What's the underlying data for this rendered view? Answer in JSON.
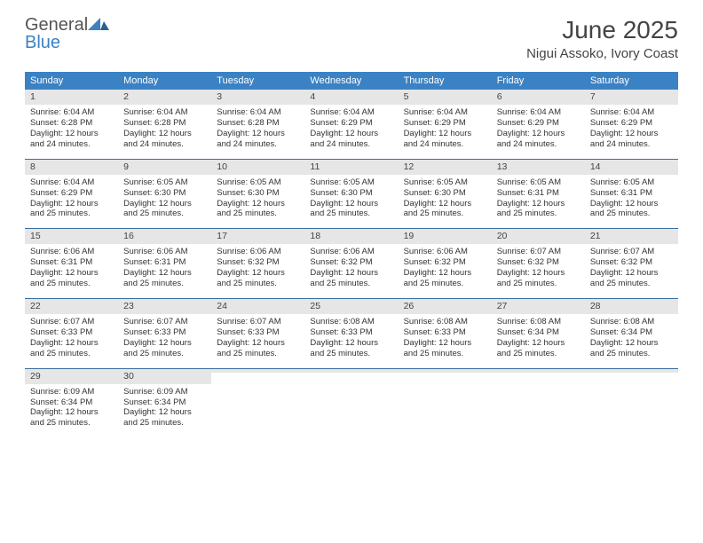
{
  "brand": {
    "word1": "General",
    "word2": "Blue"
  },
  "title": "June 2025",
  "location": "Nigui Assoko, Ivory Coast",
  "colors": {
    "header_bg": "#3b82c4",
    "header_text": "#ffffff",
    "daynum_bg": "#e6e6e6",
    "rule": "#3b6fa0",
    "text": "#333333"
  },
  "typography": {
    "title_fontsize": 28,
    "location_fontsize": 15,
    "dow_fontsize": 11,
    "body_fontsize": 9.5
  },
  "dow": [
    "Sunday",
    "Monday",
    "Tuesday",
    "Wednesday",
    "Thursday",
    "Friday",
    "Saturday"
  ],
  "weeks": [
    [
      {
        "n": "1",
        "sr": "Sunrise: 6:04 AM",
        "ss": "Sunset: 6:28 PM",
        "dl": "Daylight: 12 hours and 24 minutes."
      },
      {
        "n": "2",
        "sr": "Sunrise: 6:04 AM",
        "ss": "Sunset: 6:28 PM",
        "dl": "Daylight: 12 hours and 24 minutes."
      },
      {
        "n": "3",
        "sr": "Sunrise: 6:04 AM",
        "ss": "Sunset: 6:28 PM",
        "dl": "Daylight: 12 hours and 24 minutes."
      },
      {
        "n": "4",
        "sr": "Sunrise: 6:04 AM",
        "ss": "Sunset: 6:29 PM",
        "dl": "Daylight: 12 hours and 24 minutes."
      },
      {
        "n": "5",
        "sr": "Sunrise: 6:04 AM",
        "ss": "Sunset: 6:29 PM",
        "dl": "Daylight: 12 hours and 24 minutes."
      },
      {
        "n": "6",
        "sr": "Sunrise: 6:04 AM",
        "ss": "Sunset: 6:29 PM",
        "dl": "Daylight: 12 hours and 24 minutes."
      },
      {
        "n": "7",
        "sr": "Sunrise: 6:04 AM",
        "ss": "Sunset: 6:29 PM",
        "dl": "Daylight: 12 hours and 24 minutes."
      }
    ],
    [
      {
        "n": "8",
        "sr": "Sunrise: 6:04 AM",
        "ss": "Sunset: 6:29 PM",
        "dl": "Daylight: 12 hours and 25 minutes."
      },
      {
        "n": "9",
        "sr": "Sunrise: 6:05 AM",
        "ss": "Sunset: 6:30 PM",
        "dl": "Daylight: 12 hours and 25 minutes."
      },
      {
        "n": "10",
        "sr": "Sunrise: 6:05 AM",
        "ss": "Sunset: 6:30 PM",
        "dl": "Daylight: 12 hours and 25 minutes."
      },
      {
        "n": "11",
        "sr": "Sunrise: 6:05 AM",
        "ss": "Sunset: 6:30 PM",
        "dl": "Daylight: 12 hours and 25 minutes."
      },
      {
        "n": "12",
        "sr": "Sunrise: 6:05 AM",
        "ss": "Sunset: 6:30 PM",
        "dl": "Daylight: 12 hours and 25 minutes."
      },
      {
        "n": "13",
        "sr": "Sunrise: 6:05 AM",
        "ss": "Sunset: 6:31 PM",
        "dl": "Daylight: 12 hours and 25 minutes."
      },
      {
        "n": "14",
        "sr": "Sunrise: 6:05 AM",
        "ss": "Sunset: 6:31 PM",
        "dl": "Daylight: 12 hours and 25 minutes."
      }
    ],
    [
      {
        "n": "15",
        "sr": "Sunrise: 6:06 AM",
        "ss": "Sunset: 6:31 PM",
        "dl": "Daylight: 12 hours and 25 minutes."
      },
      {
        "n": "16",
        "sr": "Sunrise: 6:06 AM",
        "ss": "Sunset: 6:31 PM",
        "dl": "Daylight: 12 hours and 25 minutes."
      },
      {
        "n": "17",
        "sr": "Sunrise: 6:06 AM",
        "ss": "Sunset: 6:32 PM",
        "dl": "Daylight: 12 hours and 25 minutes."
      },
      {
        "n": "18",
        "sr": "Sunrise: 6:06 AM",
        "ss": "Sunset: 6:32 PM",
        "dl": "Daylight: 12 hours and 25 minutes."
      },
      {
        "n": "19",
        "sr": "Sunrise: 6:06 AM",
        "ss": "Sunset: 6:32 PM",
        "dl": "Daylight: 12 hours and 25 minutes."
      },
      {
        "n": "20",
        "sr": "Sunrise: 6:07 AM",
        "ss": "Sunset: 6:32 PM",
        "dl": "Daylight: 12 hours and 25 minutes."
      },
      {
        "n": "21",
        "sr": "Sunrise: 6:07 AM",
        "ss": "Sunset: 6:32 PM",
        "dl": "Daylight: 12 hours and 25 minutes."
      }
    ],
    [
      {
        "n": "22",
        "sr": "Sunrise: 6:07 AM",
        "ss": "Sunset: 6:33 PM",
        "dl": "Daylight: 12 hours and 25 minutes."
      },
      {
        "n": "23",
        "sr": "Sunrise: 6:07 AM",
        "ss": "Sunset: 6:33 PM",
        "dl": "Daylight: 12 hours and 25 minutes."
      },
      {
        "n": "24",
        "sr": "Sunrise: 6:07 AM",
        "ss": "Sunset: 6:33 PM",
        "dl": "Daylight: 12 hours and 25 minutes."
      },
      {
        "n": "25",
        "sr": "Sunrise: 6:08 AM",
        "ss": "Sunset: 6:33 PM",
        "dl": "Daylight: 12 hours and 25 minutes."
      },
      {
        "n": "26",
        "sr": "Sunrise: 6:08 AM",
        "ss": "Sunset: 6:33 PM",
        "dl": "Daylight: 12 hours and 25 minutes."
      },
      {
        "n": "27",
        "sr": "Sunrise: 6:08 AM",
        "ss": "Sunset: 6:34 PM",
        "dl": "Daylight: 12 hours and 25 minutes."
      },
      {
        "n": "28",
        "sr": "Sunrise: 6:08 AM",
        "ss": "Sunset: 6:34 PM",
        "dl": "Daylight: 12 hours and 25 minutes."
      }
    ],
    [
      {
        "n": "29",
        "sr": "Sunrise: 6:09 AM",
        "ss": "Sunset: 6:34 PM",
        "dl": "Daylight: 12 hours and 25 minutes."
      },
      {
        "n": "30",
        "sr": "Sunrise: 6:09 AM",
        "ss": "Sunset: 6:34 PM",
        "dl": "Daylight: 12 hours and 25 minutes."
      },
      {
        "n": "",
        "sr": "",
        "ss": "",
        "dl": ""
      },
      {
        "n": "",
        "sr": "",
        "ss": "",
        "dl": ""
      },
      {
        "n": "",
        "sr": "",
        "ss": "",
        "dl": ""
      },
      {
        "n": "",
        "sr": "",
        "ss": "",
        "dl": ""
      },
      {
        "n": "",
        "sr": "",
        "ss": "",
        "dl": ""
      }
    ]
  ]
}
